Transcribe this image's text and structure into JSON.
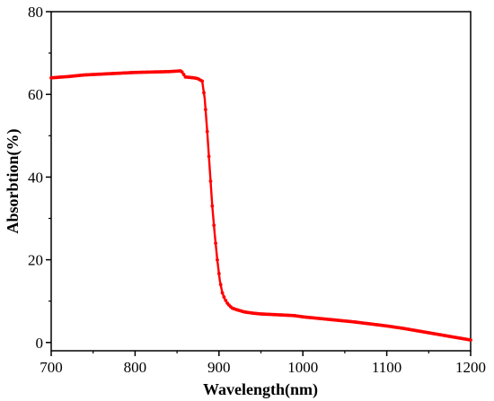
{
  "chart_data": {
    "type": "line",
    "title": "",
    "xlabel": "Wavelength(nm)",
    "ylabel": "Absorbtion(%)",
    "xlim": [
      700,
      1200
    ],
    "ylim": [
      -2,
      80
    ],
    "x_ticks": [
      "700",
      "800",
      "900",
      "1000",
      "1100",
      "1200"
    ],
    "y_ticks": [
      "0",
      "20",
      "40",
      "60",
      "80"
    ],
    "grid": false,
    "legend": "none",
    "line_color": "#ff0000",
    "marker": "circle",
    "series": [
      {
        "x": [
          700,
          720,
          740,
          760,
          780,
          800,
          820,
          840,
          855,
          860,
          865,
          870,
          875,
          880,
          883,
          886,
          889,
          892,
          895,
          898,
          901,
          904,
          907,
          910,
          913,
          916,
          920,
          925,
          930,
          940,
          950,
          960,
          970,
          980,
          990,
          1000,
          1020,
          1040,
          1060,
          1080,
          1100,
          1120,
          1140,
          1160,
          1180,
          1200
        ],
        "y": [
          64.0,
          64.3,
          64.7,
          64.9,
          65.1,
          65.3,
          65.4,
          65.5,
          65.7,
          64.2,
          64.1,
          64.0,
          63.8,
          63.2,
          59.0,
          51.0,
          42.0,
          33.0,
          26.0,
          20.0,
          15.0,
          12.0,
          10.5,
          9.5,
          8.8,
          8.3,
          8.0,
          7.7,
          7.4,
          7.1,
          6.9,
          6.8,
          6.7,
          6.6,
          6.5,
          6.2,
          5.8,
          5.4,
          5.0,
          4.5,
          4.0,
          3.4,
          2.7,
          2.0,
          1.3,
          0.6
        ]
      }
    ]
  }
}
